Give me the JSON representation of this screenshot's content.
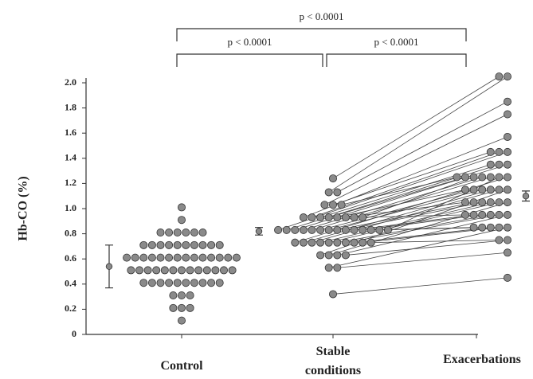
{
  "chart_data": {
    "type": "paired-dot",
    "y_label": "Hb-CO (%)",
    "categories": [
      "Control",
      "Stable conditions",
      "Exacerbations"
    ],
    "ylim": [
      0,
      2.0
    ],
    "yticks": [
      0,
      0.2,
      0.4,
      0.6,
      0.8,
      {
        "value": 1,
        "label": "1.0"
      },
      1.2,
      1.4,
      1.6,
      1.8,
      {
        "value": 2,
        "label": "2.0"
      }
    ],
    "control": {
      "values": [
        1.01,
        0.91,
        0.81,
        0.81,
        0.81,
        0.81,
        0.81,
        0.81,
        0.71,
        0.71,
        0.71,
        0.71,
        0.71,
        0.71,
        0.71,
        0.71,
        0.71,
        0.71,
        0.61,
        0.61,
        0.61,
        0.61,
        0.61,
        0.61,
        0.61,
        0.61,
        0.61,
        0.61,
        0.61,
        0.61,
        0.61,
        0.61,
        0.51,
        0.51,
        0.51,
        0.51,
        0.51,
        0.51,
        0.51,
        0.51,
        0.51,
        0.51,
        0.51,
        0.51,
        0.51,
        0.41,
        0.41,
        0.41,
        0.41,
        0.41,
        0.41,
        0.41,
        0.41,
        0.41,
        0.41,
        0.31,
        0.31,
        0.31,
        0.21,
        0.21,
        0.21,
        0.11
      ]
    },
    "stable": {
      "values": [
        1.24,
        1.13,
        1.13,
        1.03,
        1.03,
        1.03,
        0.93,
        0.93,
        0.93,
        0.93,
        0.93,
        0.93,
        0.93,
        0.93,
        0.83,
        0.83,
        0.83,
        0.83,
        0.83,
        0.83,
        0.83,
        0.83,
        0.83,
        0.83,
        0.83,
        0.83,
        0.83,
        0.83,
        0.73,
        0.73,
        0.73,
        0.73,
        0.73,
        0.73,
        0.73,
        0.73,
        0.73,
        0.73,
        0.63,
        0.63,
        0.63,
        0.63,
        0.53,
        0.53,
        0.32
      ]
    },
    "exacerbation": {
      "values": [
        2.05,
        2.05,
        1.85,
        1.75,
        1.45,
        1.25,
        1.57,
        1.45,
        1.35,
        1.25,
        1.15,
        1.05,
        0.95,
        1.25,
        1.45,
        1.35,
        1.35,
        1.25,
        1.25,
        1.15,
        1.15,
        1.05,
        1.05,
        0.95,
        0.95,
        0.85,
        0.85,
        1.25,
        1.25,
        1.15,
        1.15,
        1.05,
        1.05,
        0.95,
        0.95,
        0.85,
        0.85,
        0.75,
        1.15,
        1.05,
        0.95,
        0.75,
        0.85,
        0.65,
        0.45
      ]
    },
    "means": [
      {
        "mean": 0.54,
        "sd": 0.17
      },
      {
        "mean": 0.82,
        "sd": 0.03
      },
      {
        "mean": 1.1,
        "sd": 0.04
      }
    ],
    "annotations": [
      "p < 0.0001",
      "p < 0.0001",
      "p < 0.0001"
    ],
    "dot_color": "#8a8a8a"
  }
}
